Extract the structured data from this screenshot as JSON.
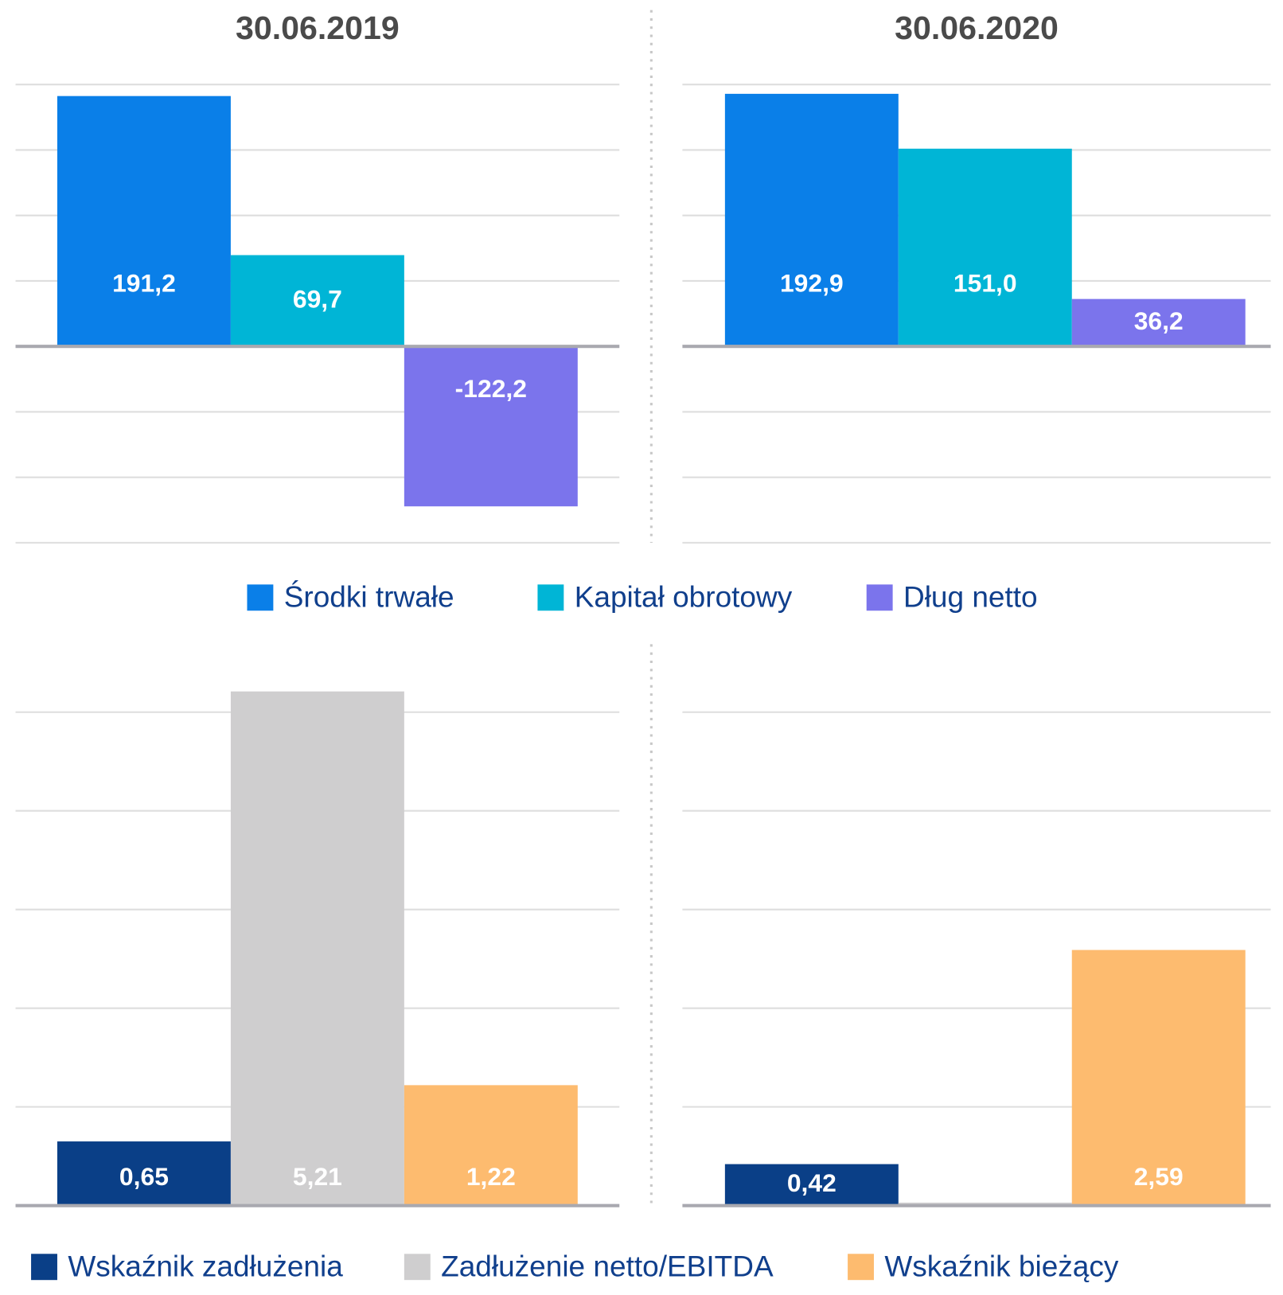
{
  "chart_data": [
    {
      "type": "bar",
      "categories": [
        "Środki trwałe",
        "Kapitał obrotowy",
        "Dług netto"
      ],
      "colors": [
        "#0a7fe8",
        "#00b5d6",
        "#7b74ec"
      ],
      "ylim": [
        -150,
        200
      ],
      "yticks": [
        -150,
        -100,
        -50,
        0,
        50,
        100,
        150,
        200
      ],
      "grid": true,
      "panels": [
        {
          "title": "30.06.2019",
          "values": [
            191.2,
            69.7,
            -122.2
          ],
          "value_labels": [
            "191,2",
            "69,7",
            "-122,2"
          ]
        },
        {
          "title": "30.06.2020",
          "values": [
            192.9,
            151.0,
            36.2
          ],
          "value_labels": [
            "192,9",
            "151,0",
            "36,2"
          ]
        }
      ]
    },
    {
      "type": "bar",
      "categories": [
        "Wskaźnik zadłużenia",
        "Zadłużenie netto/EBITDA",
        "Wskaźnik bieżący"
      ],
      "colors": [
        "#0a3f87",
        "#cfcecf",
        "#fdbb6f"
      ],
      "ylim": [
        0,
        5
      ],
      "yticks": [
        0,
        1,
        2,
        3,
        4,
        5
      ],
      "grid": true,
      "panels": [
        {
          "values": [
            0.65,
            5.21,
            1.22
          ],
          "value_labels": [
            "0,65",
            "5,21",
            "1,22"
          ]
        },
        {
          "values": [
            0.42,
            0.03,
            2.59
          ],
          "value_labels": [
            "0,42",
            null,
            "2,59"
          ]
        }
      ]
    }
  ]
}
